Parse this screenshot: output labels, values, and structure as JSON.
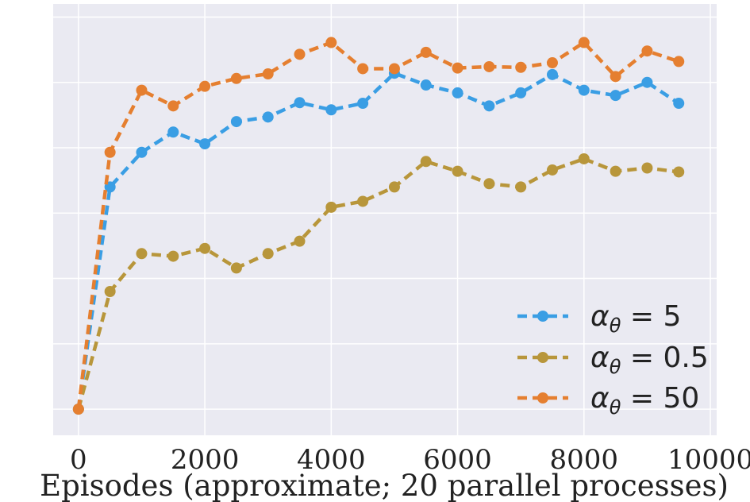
{
  "chart_data": {
    "type": "line",
    "title": "",
    "xlabel": "Episodes (approximate; 20 parallel processes)",
    "ylabel": "",
    "xlim": [
      -400,
      10100
    ],
    "ylim": [
      -0.04,
      0.62
    ],
    "xticks": [
      0,
      2000,
      4000,
      6000,
      8000,
      10000
    ],
    "xtick_labels": [
      "0",
      "2000",
      "4000",
      "6000",
      "8000",
      "10000"
    ],
    "y_gridlines": [
      0,
      0.1,
      0.2,
      0.3,
      0.4,
      0.5,
      0.6
    ],
    "grid": true,
    "legend_position": "bottom-right",
    "x": [
      0,
      500,
      1000,
      1500,
      2000,
      2500,
      3000,
      3500,
      4000,
      4500,
      5000,
      5500,
      6000,
      6500,
      7000,
      7500,
      8000,
      8500,
      9000,
      9500
    ],
    "series": [
      {
        "legend": {
          "base": "α",
          "sub": "θ",
          "rest": " = 5"
        },
        "color": "#3a9ee4",
        "values": [
          0.0,
          0.34,
          0.393,
          0.424,
          0.406,
          0.44,
          0.447,
          0.469,
          0.458,
          0.468,
          0.514,
          0.496,
          0.484,
          0.464,
          0.484,
          0.512,
          0.488,
          0.48,
          0.5,
          0.468
        ]
      },
      {
        "legend": {
          "base": "α",
          "sub": "θ",
          "rest": " = 0.5"
        },
        "color": "#b8963b",
        "values": [
          0.0,
          0.18,
          0.238,
          0.234,
          0.246,
          0.216,
          0.238,
          0.257,
          0.309,
          0.318,
          0.34,
          0.379,
          0.364,
          0.345,
          0.34,
          0.366,
          0.383,
          0.364,
          0.369,
          0.363
        ]
      },
      {
        "legend": {
          "base": "α",
          "sub": "θ",
          "rest": " = 50"
        },
        "color": "#e57f30",
        "values": [
          0.0,
          0.393,
          0.488,
          0.464,
          0.494,
          0.506,
          0.513,
          0.543,
          0.561,
          0.521,
          0.521,
          0.546,
          0.522,
          0.524,
          0.523,
          0.53,
          0.561,
          0.509,
          0.548,
          0.532
        ]
      }
    ]
  }
}
